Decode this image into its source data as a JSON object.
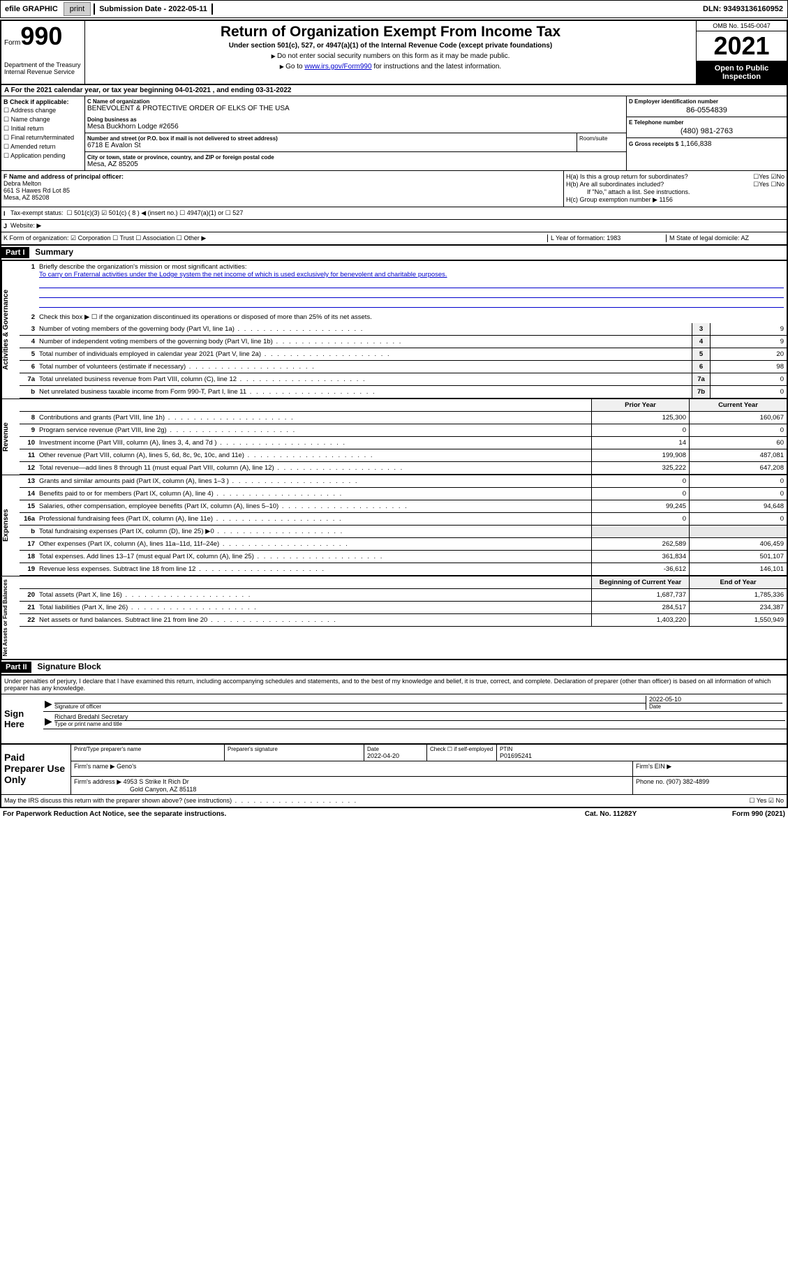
{
  "topbar": {
    "efile_label": "efile GRAPHIC",
    "print_btn": "print",
    "sub_date_label": "Submission Date - 2022-05-11",
    "dln": "DLN: 93493136160952"
  },
  "header": {
    "form_word": "Form",
    "form_no": "990",
    "dept": "Department of the Treasury\nInternal Revenue Service",
    "title": "Return of Organization Exempt From Income Tax",
    "subtitle": "Under section 501(c), 527, or 4947(a)(1) of the Internal Revenue Code (except private foundations)",
    "note1": "Do not enter social security numbers on this form as it may be made public.",
    "note2_pre": "Go to ",
    "note2_link": "www.irs.gov/Form990",
    "note2_post": " for instructions and the latest information.",
    "omb": "OMB No. 1545-0047",
    "year": "2021",
    "open": "Open to Public Inspection"
  },
  "rowA": "For the 2021 calendar year, or tax year beginning 04-01-2021   , and ending 03-31-2022",
  "colB": {
    "hdr": "B Check if applicable:",
    "items": [
      "Address change",
      "Name change",
      "Initial return",
      "Final return/terminated",
      "Amended return",
      "Application pending"
    ]
  },
  "colC": {
    "name_lbl": "C Name of organization",
    "name": "BENEVOLENT & PROTECTIVE ORDER OF ELKS OF THE USA",
    "dba_lbl": "Doing business as",
    "dba": "Mesa Buckhorn Lodge #2656",
    "addr_lbl": "Number and street (or P.O. box if mail is not delivered to street address)",
    "addr": "6718 E Avalon St",
    "room_lbl": "Room/suite",
    "city_lbl": "City or town, state or province, country, and ZIP or foreign postal code",
    "city": "Mesa, AZ  85205"
  },
  "colD": {
    "lbl": "D Employer identification number",
    "val": "86-0554839"
  },
  "colE": {
    "lbl": "E Telephone number",
    "val": "(480) 981-2763"
  },
  "colG": {
    "lbl": "G Gross receipts $",
    "val": "1,166,838"
  },
  "colF": {
    "lbl": "F  Name and address of principal officer:",
    "name": "Debra Melton",
    "addr1": "661 S Hawes Rd Lot 85",
    "addr2": "Mesa, AZ  85208"
  },
  "colH": {
    "ha": "H(a)  Is this a group return for subordinates?",
    "hb": "H(b)  Are all subordinates included?",
    "hb_note": "If \"No,\" attach a list. See instructions.",
    "hc": "H(c)  Group exemption number ▶   1156"
  },
  "rowI": {
    "lbl": "Tax-exempt status:",
    "opts": "☐ 501(c)(3)   ☑ 501(c) ( 8 ) ◀ (insert no.)    ☐ 4947(a)(1) or   ☐ 527"
  },
  "rowJ": {
    "lbl": "Website: ▶"
  },
  "rowK": {
    "k": "K Form of organization:  ☑ Corporation  ☐ Trust  ☐ Association  ☐ Other ▶",
    "l": "L Year of formation: 1983",
    "m": "M State of legal domicile: AZ"
  },
  "part1": {
    "hdr": "Part I",
    "title": "Summary"
  },
  "mission": {
    "q": "Briefly describe the organization's mission or most significant activities:",
    "txt": "To carry on Fraternal activities under the Lodge system the net income of which is used exclusively for benevolent and charitable purposes."
  },
  "q2": "Check this box ▶ ☐  if the organization discontinued its operations or disposed of more than 25% of its net assets.",
  "lines_single": [
    {
      "n": "3",
      "t": "Number of voting members of the governing body (Part VI, line 1a)",
      "bn": "3",
      "v": "9"
    },
    {
      "n": "4",
      "t": "Number of independent voting members of the governing body (Part VI, line 1b)",
      "bn": "4",
      "v": "9"
    },
    {
      "n": "5",
      "t": "Total number of individuals employed in calendar year 2021 (Part V, line 2a)",
      "bn": "5",
      "v": "20"
    },
    {
      "n": "6",
      "t": "Total number of volunteers (estimate if necessary)",
      "bn": "6",
      "v": "98"
    },
    {
      "n": "7a",
      "t": "Total unrelated business revenue from Part VIII, column (C), line 12",
      "bn": "7a",
      "v": "0"
    },
    {
      "n": "b",
      "t": "Net unrelated business taxable income from Form 990-T, Part I, line 11",
      "bn": "7b",
      "v": "0"
    }
  ],
  "twocol_hdr": {
    "prior": "Prior Year",
    "curr": "Current Year"
  },
  "revenue": [
    {
      "n": "8",
      "t": "Contributions and grants (Part VIII, line 1h)",
      "p": "125,300",
      "c": "160,067"
    },
    {
      "n": "9",
      "t": "Program service revenue (Part VIII, line 2g)",
      "p": "0",
      "c": "0"
    },
    {
      "n": "10",
      "t": "Investment income (Part VIII, column (A), lines 3, 4, and 7d )",
      "p": "14",
      "c": "60"
    },
    {
      "n": "11",
      "t": "Other revenue (Part VIII, column (A), lines 5, 6d, 8c, 9c, 10c, and 11e)",
      "p": "199,908",
      "c": "487,081"
    },
    {
      "n": "12",
      "t": "Total revenue—add lines 8 through 11 (must equal Part VIII, column (A), line 12)",
      "p": "325,222",
      "c": "647,208"
    }
  ],
  "expenses": [
    {
      "n": "13",
      "t": "Grants and similar amounts paid (Part IX, column (A), lines 1–3 )",
      "p": "0",
      "c": "0"
    },
    {
      "n": "14",
      "t": "Benefits paid to or for members (Part IX, column (A), line 4)",
      "p": "0",
      "c": "0"
    },
    {
      "n": "15",
      "t": "Salaries, other compensation, employee benefits (Part IX, column (A), lines 5–10)",
      "p": "99,245",
      "c": "94,648"
    },
    {
      "n": "16a",
      "t": "Professional fundraising fees (Part IX, column (A), line 11e)",
      "p": "0",
      "c": "0"
    },
    {
      "n": "b",
      "t": "Total fundraising expenses (Part IX, column (D), line 25) ▶0",
      "p": "",
      "c": "",
      "shaded": true
    },
    {
      "n": "17",
      "t": "Other expenses (Part IX, column (A), lines 11a–11d, 11f–24e)",
      "p": "262,589",
      "c": "406,459"
    },
    {
      "n": "18",
      "t": "Total expenses. Add lines 13–17 (must equal Part IX, column (A), line 25)",
      "p": "361,834",
      "c": "501,107"
    },
    {
      "n": "19",
      "t": "Revenue less expenses. Subtract line 18 from line 12",
      "p": "-36,612",
      "c": "146,101"
    }
  ],
  "netassets_hdr": {
    "prior": "Beginning of Current Year",
    "curr": "End of Year"
  },
  "netassets": [
    {
      "n": "20",
      "t": "Total assets (Part X, line 16)",
      "p": "1,687,737",
      "c": "1,785,336"
    },
    {
      "n": "21",
      "t": "Total liabilities (Part X, line 26)",
      "p": "284,517",
      "c": "234,387"
    },
    {
      "n": "22",
      "t": "Net assets or fund balances. Subtract line 21 from line 20",
      "p": "1,403,220",
      "c": "1,550,949"
    }
  ],
  "vtabs": {
    "ag": "Activities & Governance",
    "rev": "Revenue",
    "exp": "Expenses",
    "na": "Net Assets or Fund Balances"
  },
  "part2": {
    "hdr": "Part II",
    "title": "Signature Block",
    "decl": "Under penalties of perjury, I declare that I have examined this return, including accompanying schedules and statements, and to the best of my knowledge and belief, it is true, correct, and complete. Declaration of preparer (other than officer) is based on all information of which preparer has any knowledge."
  },
  "sign": {
    "here": "Sign Here",
    "sig_lbl": "Signature of officer",
    "date": "2022-05-10",
    "date_lbl": "Date",
    "name": "Richard Bredahl Secretary",
    "name_lbl": "Type or print name and title"
  },
  "paid": {
    "hdr": "Paid Preparer Use Only",
    "pt_name_lbl": "Print/Type preparer's name",
    "sig_lbl": "Preparer's signature",
    "date_lbl": "Date",
    "date": "2022-04-20",
    "chk_lbl": "Check ☐ if self-employed",
    "ptin_lbl": "PTIN",
    "ptin": "P01695241",
    "firm_lbl": "Firm's name   ▶",
    "firm": "Geno's",
    "ein_lbl": "Firm's EIN ▶",
    "addr_lbl": "Firm's address ▶",
    "addr": "4953 S Strike It Rich Dr",
    "addr2": "Gold Canyon, AZ  85118",
    "phone_lbl": "Phone no.",
    "phone": "(907) 382-4899"
  },
  "footer": {
    "discuss": "May the IRS discuss this return with the preparer shown above? (see instructions)",
    "yn": "☐ Yes  ☑ No",
    "pra": "For Paperwork Reduction Act Notice, see the separate instructions.",
    "cat": "Cat. No. 11282Y",
    "form": "Form 990 (2021)"
  }
}
